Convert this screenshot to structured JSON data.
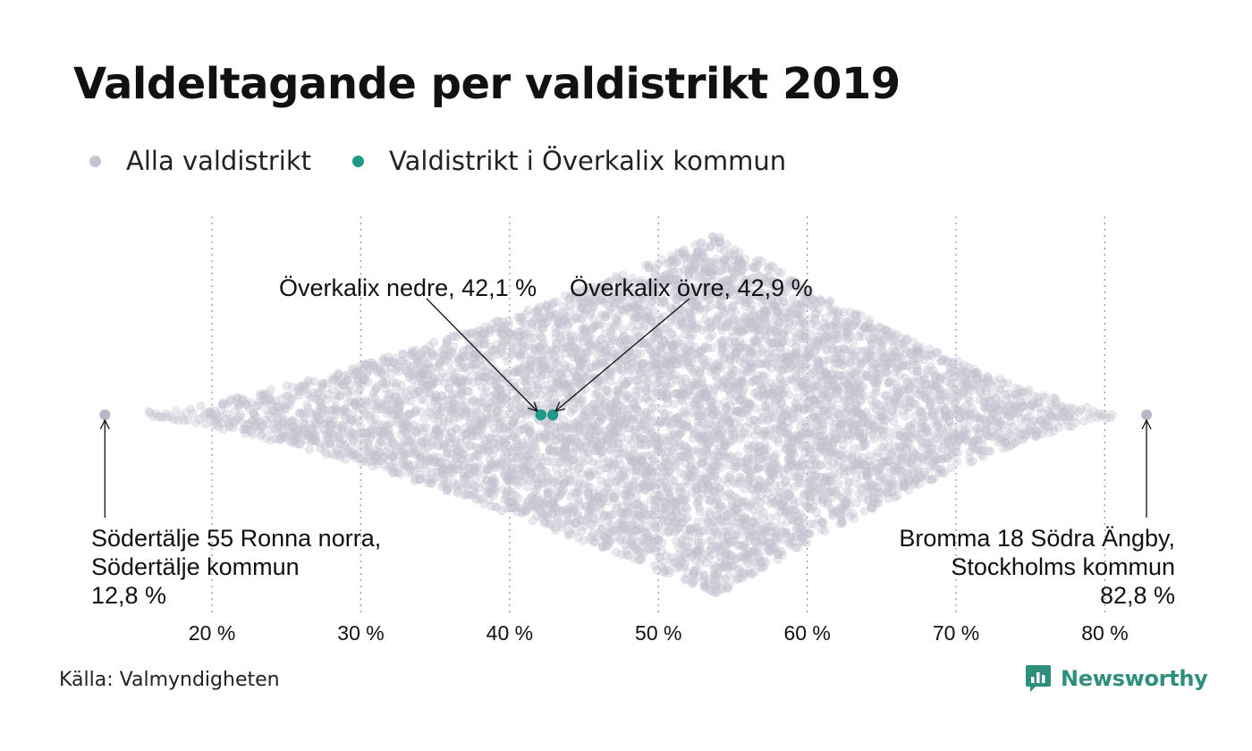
{
  "title": "Valdeltagande per valdistrikt 2019",
  "legend": [
    {
      "label": "Alla valdistrikt",
      "color": "#c5c4d2"
    },
    {
      "label": "Valdistrikt i Överkalix kommun",
      "color": "#1f9a87"
    }
  ],
  "source": "Källa: Valmyndigheten",
  "brand": "Newsworthy",
  "chart_data": {
    "type": "scatter",
    "subtype": "beeswarm",
    "title": "Valdeltagande per valdistrikt 2019",
    "xlabel": "",
    "ylabel": "",
    "x_ticks": [
      20,
      30,
      40,
      50,
      60,
      70,
      80
    ],
    "x_tick_labels": [
      "20 %",
      "30 %",
      "40 %",
      "50 %",
      "60 %",
      "70 %",
      "80 %"
    ],
    "xlim": [
      12,
      84
    ],
    "grid": "vertical dotted",
    "legend_position": "top-left",
    "series": [
      {
        "name": "Alla valdistrikt",
        "color": "#c5c4d2",
        "distribution": {
          "min": 12.8,
          "max": 82.8,
          "peak": 54
        }
      },
      {
        "name": "Valdistrikt i Överkalix kommun",
        "color": "#1f9a87",
        "points": [
          {
            "label": "Överkalix nedre",
            "x": 42.1
          },
          {
            "label": "Överkalix övre",
            "x": 42.9
          }
        ]
      }
    ],
    "annotations": [
      {
        "target": 42.1,
        "lines": [
          "Överkalix nedre, 42,1 %"
        ]
      },
      {
        "target": 42.9,
        "lines": [
          "Överkalix övre, 42,9 %"
        ]
      },
      {
        "target": 12.8,
        "lines": [
          "Södertälje 55 Ronna norra,",
          "Södertälje kommun",
          "12,8 %"
        ]
      },
      {
        "target": 82.8,
        "lines": [
          "Bromma 18 Södra Ängby,",
          "Stockholms kommun",
          "82,8 %"
        ]
      }
    ]
  }
}
